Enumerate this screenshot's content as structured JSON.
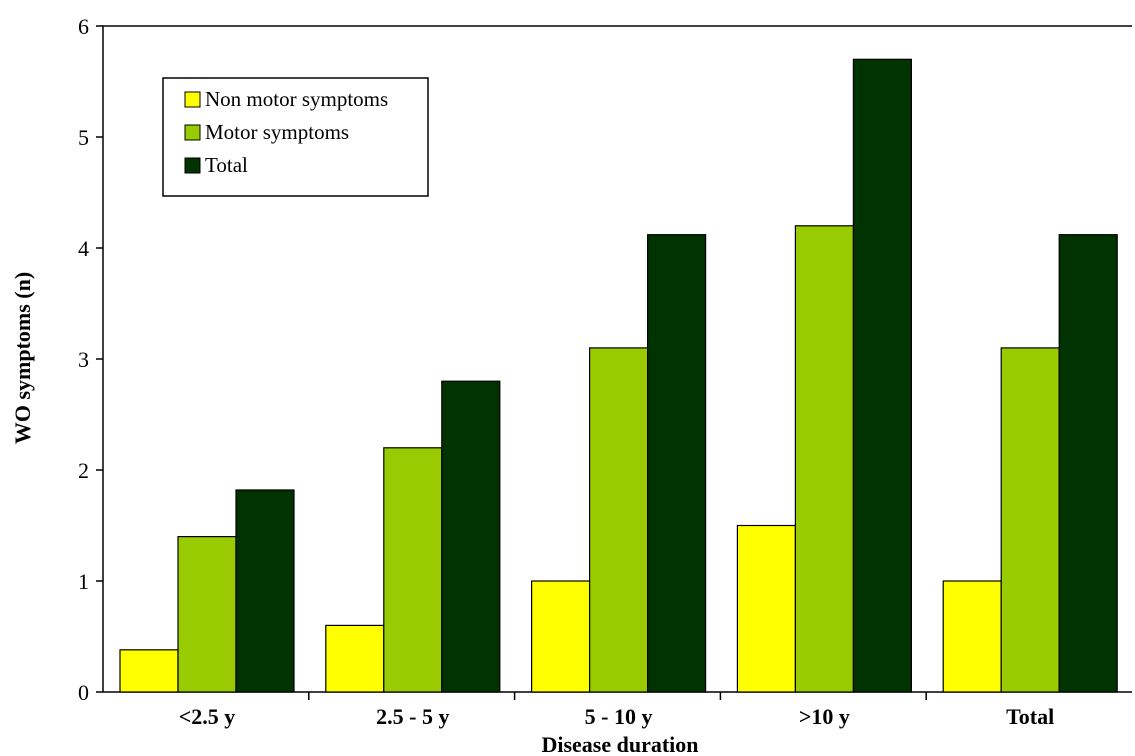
{
  "chart_data": {
    "type": "bar",
    "categories": [
      "<2.5 y",
      "2.5 - 5 y",
      "5 - 10 y",
      ">10 y",
      "Total"
    ],
    "series": [
      {
        "name": "Non motor symptoms",
        "color": "#ffff00",
        "values": [
          0.38,
          0.6,
          1.0,
          1.5,
          1.0
        ]
      },
      {
        "name": "Motor symptoms",
        "color": "#99cc00",
        "values": [
          1.4,
          2.2,
          3.1,
          4.2,
          3.1
        ]
      },
      {
        "name": "Total",
        "color": "#003300",
        "values": [
          1.82,
          2.8,
          4.12,
          5.7,
          4.12
        ]
      }
    ],
    "xlabel": "Disease duration",
    "ylabel": "WO symptoms (n)",
    "ylim": [
      0,
      6
    ],
    "yticks": [
      "0",
      "1",
      "2",
      "3",
      "4",
      "5",
      "6"
    ],
    "grid": false,
    "legend_position": "top-left"
  }
}
